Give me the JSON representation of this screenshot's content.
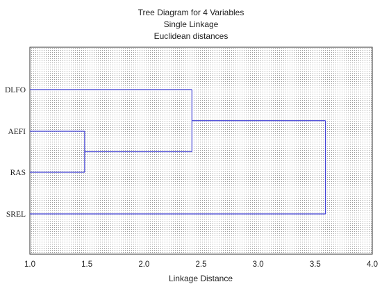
{
  "chart_data": {
    "type": "dendrogram",
    "title": "Tree Diagram for 4   Variables",
    "subtitle": "Single Linkage",
    "subtitle2": "Euclidean distances",
    "xlabel": "Linkage Distance",
    "xlim": [
      1.0,
      4.0
    ],
    "xticks": [
      "1.0",
      "1.5",
      "2.0",
      "2.5",
      "3.0",
      "3.5",
      "4.0"
    ],
    "leaves": [
      "DLFO",
      "AEFI",
      "RAS",
      "SREL"
    ],
    "merges": [
      {
        "a": "AEFI",
        "b": "RAS",
        "distance": 1.48
      },
      {
        "a": "DLFO",
        "b": "AEFI+RAS",
        "distance": 2.42
      },
      {
        "a": "DLFO+AEFI+RAS",
        "b": "SREL",
        "distance": 3.59
      }
    ],
    "grid": true,
    "line_color": "#3f3fd4"
  }
}
